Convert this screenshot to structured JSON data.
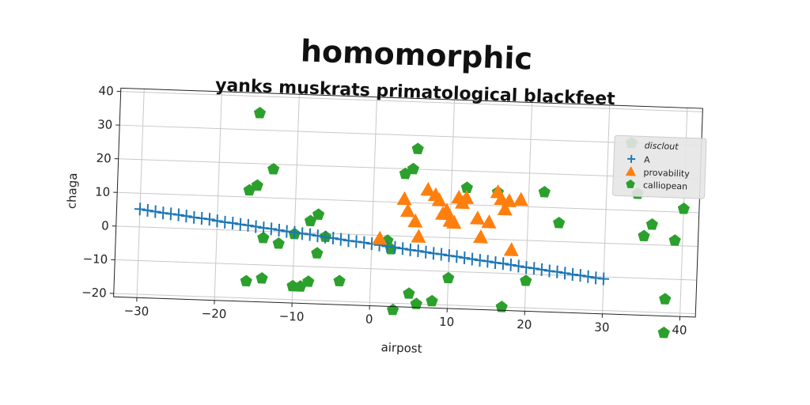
{
  "chart_data": {
    "type": "scatter",
    "suptitle": "homomorphic",
    "title": "yanks muskrats primatological blackfeet",
    "xlabel": "airpost",
    "ylabel": "chaga",
    "xlim": [
      -33,
      42
    ],
    "ylim": [
      -21,
      41
    ],
    "xticks": [
      -30,
      -20,
      -10,
      0,
      10,
      20,
      30,
      40
    ],
    "yticks": [
      -20,
      -10,
      0,
      10,
      20,
      30,
      40
    ],
    "xtick_labels": [
      "−30",
      "−20",
      "−10",
      "0",
      "10",
      "20",
      "30",
      "40"
    ],
    "ytick_labels": [
      "−20",
      "−10",
      "0",
      "10",
      "20",
      "30",
      "40"
    ],
    "grid": true,
    "legend": {
      "title": "disclout",
      "position": "top-right"
    },
    "series": [
      {
        "name": "A",
        "marker": "plus-line",
        "color": "#1f77b4",
        "x": [
          -30,
          -29,
          -28,
          -27,
          -26,
          -25,
          -24,
          -23,
          -22,
          -21,
          -20,
          -19,
          -18,
          -17,
          -16,
          -15,
          -14,
          -13,
          -12,
          -11,
          -10,
          -9,
          -8,
          -7,
          -6,
          -5,
          -4,
          -3,
          -2,
          -1,
          0,
          1,
          2,
          3,
          4,
          5,
          6,
          7,
          8,
          9,
          10,
          11,
          12,
          13,
          14,
          15,
          16,
          17,
          18,
          19,
          20,
          21,
          22,
          23,
          24,
          25,
          26,
          27,
          28,
          29,
          30
        ],
        "y": [
          5.3,
          5.0,
          4.7,
          4.4,
          4.2,
          4.0,
          3.7,
          3.4,
          3.2,
          3.0,
          2.6,
          2.3,
          2.1,
          1.8,
          1.6,
          1.3,
          1.0,
          0.8,
          0.5,
          0.2,
          0.0,
          -0.3,
          -0.5,
          -0.8,
          -1.1,
          -1.3,
          -1.6,
          -1.9,
          -2.1,
          -2.3,
          -2.6,
          -2.9,
          -3.2,
          -3.4,
          -3.7,
          -4.0,
          -4.2,
          -4.5,
          -4.8,
          -5.0,
          -5.3,
          -5.5,
          -5.8,
          -6.1,
          -6.4,
          -6.6,
          -6.9,
          -7.1,
          -7.4,
          -7.7,
          -8.0,
          -8.2,
          -8.5,
          -8.8,
          -9.0,
          -9.3,
          -9.6,
          -9.8,
          -10.1,
          -10.4,
          -10.6
        ]
      },
      {
        "name": "provability",
        "marker": "triangle",
        "color": "#ff7f0e",
        "x": [
          1,
          4,
          4.5,
          5.5,
          6,
          7,
          8,
          8.5,
          9,
          9.5,
          10,
          10.5,
          11,
          11.5,
          12,
          13.5,
          14,
          15,
          16,
          16.5,
          17,
          17.5,
          18,
          19
        ],
        "y": [
          -1,
          11,
          7.5,
          4.5,
          0,
          14,
          12.5,
          11,
          7,
          8,
          5,
          4.5,
          12,
          10.5,
          12,
          6,
          0.5,
          5,
          14,
          12,
          9,
          11.5,
          -3,
          12
        ]
      },
      {
        "name": "calliopean",
        "marker": "pentagon",
        "color": "#2ca02c",
        "x": [
          -15,
          -16,
          -15,
          -13,
          -14,
          -16,
          -14,
          -12,
          -10,
          -9,
          -8,
          -7,
          -7,
          -6,
          -8,
          -4,
          -10,
          2,
          2.5,
          3,
          4,
          5,
          5.5,
          5,
          6,
          8,
          10,
          12,
          16,
          17,
          20,
          22,
          24,
          33,
          34,
          35,
          36,
          38,
          39,
          40,
          38
        ],
        "y": [
          35,
          12,
          13.5,
          18.5,
          -2,
          -15,
          -14,
          -3.5,
          -0.5,
          -16,
          3.5,
          5.5,
          -6,
          -1,
          -14.5,
          -14,
          -16,
          -1.5,
          -4,
          -22,
          18.5,
          20,
          26,
          -17,
          -20,
          -19,
          -12,
          15,
          14,
          -20,
          -12,
          14.5,
          5.5,
          30,
          15,
          2.5,
          6,
          -16,
          1.5,
          11,
          -26
        ]
      }
    ]
  }
}
